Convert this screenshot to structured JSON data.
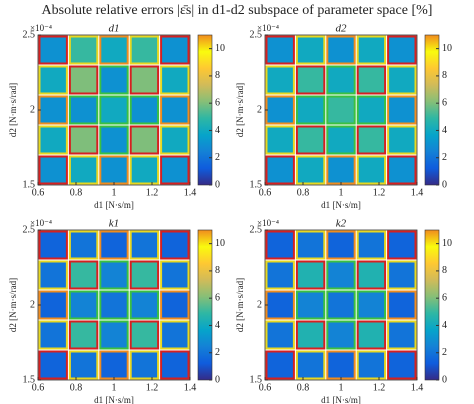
{
  "title": "Absolute relative errors |ε̄s| in d1-d2 subspace of parameter space [%]",
  "chart_data": [
    {
      "type": "heatmap",
      "title": "d1",
      "x_label": "d1 [N·s/m]",
      "y_label": "d2 [N·m·s/rad]",
      "y_multiplier": "×10⁻⁴",
      "x_bins": [
        0.6,
        0.76,
        0.92,
        1.08,
        1.24,
        1.4
      ],
      "y_bins": [
        0.00015,
        0.00017,
        0.00019,
        0.00021,
        0.00023,
        0.00025
      ],
      "values": [
        [
          3,
          4,
          3,
          4,
          3
        ],
        [
          4,
          6,
          3,
          6,
          4
        ],
        [
          3,
          3,
          4,
          3,
          3
        ],
        [
          4,
          6,
          3,
          6,
          4
        ],
        [
          3,
          5,
          4,
          5,
          3
        ]
      ],
      "cell_edges": [
        [
          "#d62020",
          "#e8d820",
          "#f08c1e",
          "#e8d820",
          "#d62020"
        ],
        [
          "#e8d820",
          "#d62020",
          "#3cc040",
          "#d62020",
          "#e8d820"
        ],
        [
          "#f08c1e",
          "#3cc040",
          "#3cc040",
          "#3cc040",
          "#f08c1e"
        ],
        [
          "#e8d820",
          "#d62020",
          "#3cc040",
          "#d62020",
          "#e8d820"
        ],
        [
          "#d62020",
          "#e8d820",
          "#f08c1e",
          "#e8d820",
          "#d62020"
        ]
      ],
      "xlim": [
        0.6,
        1.4
      ],
      "xticks": [
        0.6,
        0.8,
        1,
        1.2,
        1.4
      ],
      "ylim": [
        0.00015,
        0.00025
      ],
      "yticks": [
        {
          "value": 0.00015,
          "label": "1.5"
        },
        {
          "value": 0.0002,
          "label": "2"
        },
        {
          "value": 0.00025,
          "label": "2.5"
        }
      ],
      "clim": [
        0,
        11
      ],
      "cticks": [
        0,
        2,
        4,
        6,
        8,
        10
      ]
    },
    {
      "type": "heatmap",
      "title": "d2",
      "x_label": "d1 [N·s/m]",
      "y_label": "d2 [N·m·s/rad]",
      "y_multiplier": "×10⁻⁴",
      "x_bins": [
        0.6,
        0.76,
        0.92,
        1.08,
        1.24,
        1.4
      ],
      "y_bins": [
        0.00015,
        0.00017,
        0.00019,
        0.00021,
        0.00023,
        0.00025
      ],
      "values": [
        [
          3,
          4,
          3,
          4,
          3
        ],
        [
          4,
          5,
          4,
          5,
          4
        ],
        [
          3,
          4,
          5,
          4,
          3
        ],
        [
          4,
          5,
          4,
          5,
          4
        ],
        [
          3,
          4,
          3,
          4,
          3
        ]
      ],
      "cell_edges": [
        [
          "#d62020",
          "#e8d820",
          "#f08c1e",
          "#e8d820",
          "#d62020"
        ],
        [
          "#e8d820",
          "#d62020",
          "#3cc040",
          "#d62020",
          "#e8d820"
        ],
        [
          "#f08c1e",
          "#3cc040",
          "#3cc040",
          "#3cc040",
          "#f08c1e"
        ],
        [
          "#e8d820",
          "#d62020",
          "#3cc040",
          "#d62020",
          "#e8d820"
        ],
        [
          "#d62020",
          "#e8d820",
          "#f08c1e",
          "#e8d820",
          "#d62020"
        ]
      ],
      "xlim": [
        0.6,
        1.4
      ],
      "xticks": [
        0.6,
        0.8,
        1,
        1.2,
        1.4
      ],
      "ylim": [
        0.00015,
        0.00025
      ],
      "yticks": [
        {
          "value": 0.00015,
          "label": "1.5"
        },
        {
          "value": 0.0002,
          "label": "2"
        },
        {
          "value": 0.00025,
          "label": "2.5"
        }
      ],
      "clim": [
        0,
        11
      ],
      "cticks": [
        0,
        2,
        4,
        6,
        8,
        10
      ]
    },
    {
      "type": "heatmap",
      "title": "k1",
      "x_label": "d1 [N·s/m]",
      "y_label": "d2 [N·m·s/rad]",
      "y_multiplier": "×10⁻⁴",
      "x_bins": [
        0.6,
        0.76,
        0.92,
        1.08,
        1.24,
        1.4
      ],
      "y_bins": [
        0.00015,
        0.00017,
        0.00019,
        0.00021,
        0.00023,
        0.00025
      ],
      "values": [
        [
          1.5,
          2,
          1.5,
          2,
          1.5
        ],
        [
          2,
          5,
          2.5,
          5,
          2
        ],
        [
          1.5,
          2.5,
          2,
          2.5,
          1.5
        ],
        [
          2,
          5,
          2.5,
          5,
          2
        ],
        [
          1.5,
          2,
          1.5,
          2,
          1.5
        ]
      ],
      "cell_edges": [
        [
          "#d62020",
          "#e8d820",
          "#f08c1e",
          "#e8d820",
          "#d62020"
        ],
        [
          "#e8d820",
          "#d62020",
          "#3cc040",
          "#d62020",
          "#e8d820"
        ],
        [
          "#f08c1e",
          "#3cc040",
          "#3cc040",
          "#3cc040",
          "#f08c1e"
        ],
        [
          "#e8d820",
          "#d62020",
          "#3cc040",
          "#d62020",
          "#e8d820"
        ],
        [
          "#d62020",
          "#e8d820",
          "#f08c1e",
          "#e8d820",
          "#d62020"
        ]
      ],
      "xlim": [
        0.6,
        1.4
      ],
      "xticks": [
        0.6,
        0.8,
        1,
        1.2,
        1.4
      ],
      "ylim": [
        0.00015,
        0.00025
      ],
      "yticks": [
        {
          "value": 0.00015,
          "label": "1.5"
        },
        {
          "value": 0.0002,
          "label": "2"
        },
        {
          "value": 0.00025,
          "label": "2.5"
        }
      ],
      "clim": [
        0,
        11
      ],
      "cticks": [
        0,
        2,
        4,
        6,
        8,
        10
      ]
    },
    {
      "type": "heatmap",
      "title": "k2",
      "x_label": "d1 [N·s/m]",
      "y_label": "d2 [N·m·s/rad]",
      "y_multiplier": "×10⁻⁴",
      "x_bins": [
        0.6,
        0.76,
        0.92,
        1.08,
        1.24,
        1.4
      ],
      "y_bins": [
        0.00015,
        0.00017,
        0.00019,
        0.00021,
        0.00023,
        0.00025
      ],
      "values": [
        [
          1.5,
          2,
          1.5,
          2,
          1.5
        ],
        [
          2,
          4.5,
          2.5,
          4.5,
          2
        ],
        [
          1.5,
          2.5,
          2,
          2.5,
          1.5
        ],
        [
          2,
          4.5,
          2.5,
          4.5,
          2
        ],
        [
          1.5,
          2,
          1.5,
          2,
          1.5
        ]
      ],
      "cell_edges": [
        [
          "#d62020",
          "#e8d820",
          "#f08c1e",
          "#e8d820",
          "#d62020"
        ],
        [
          "#e8d820",
          "#d62020",
          "#3cc040",
          "#d62020",
          "#e8d820"
        ],
        [
          "#f08c1e",
          "#3cc040",
          "#3cc040",
          "#3cc040",
          "#f08c1e"
        ],
        [
          "#e8d820",
          "#d62020",
          "#3cc040",
          "#d62020",
          "#e8d820"
        ],
        [
          "#d62020",
          "#e8d820",
          "#f08c1e",
          "#e8d820",
          "#d62020"
        ]
      ],
      "xlim": [
        0.6,
        1.4
      ],
      "xticks": [
        0.6,
        0.8,
        1,
        1.2,
        1.4
      ],
      "ylim": [
        0.00015,
        0.00025
      ],
      "yticks": [
        {
          "value": 0.00015,
          "label": "1.5"
        },
        {
          "value": 0.0002,
          "label": "2"
        },
        {
          "value": 0.00025,
          "label": "2.5"
        }
      ],
      "clim": [
        0,
        11
      ],
      "cticks": [
        0,
        2,
        4,
        6,
        8,
        10
      ]
    }
  ],
  "colormap": [
    "#352a87",
    "#0f5cdd",
    "#1481d6",
    "#06a4ca",
    "#2eb7a4",
    "#87bf77",
    "#d1bb59",
    "#fec832",
    "#f9fb0e",
    "#f08c1e"
  ]
}
